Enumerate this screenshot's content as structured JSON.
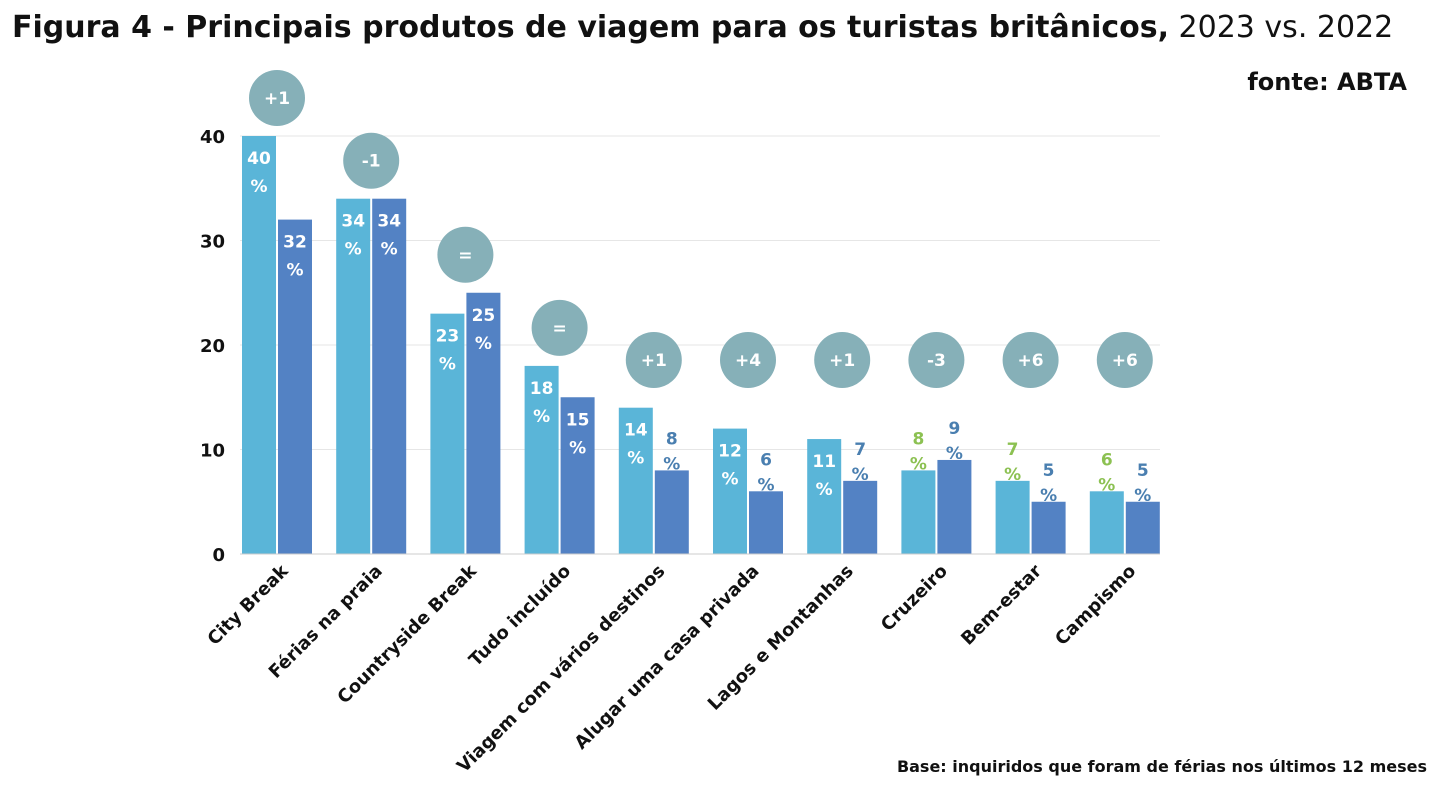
{
  "title": {
    "bold": "Figura 4 - Principais produtos de viagem para os turistas britânicos,",
    "light": "2023 vs. 2022"
  },
  "source_label": "fonte: ABTA",
  "base_note": "Base: inquiridos que foram de férias nos últimos 12 meses",
  "colors": {
    "bar_2023": "#5ab5d8",
    "bar_2022": "#5382c4",
    "bubble": "#86b0b8",
    "label_inside": "#ffffff",
    "label_2022_outside": "#4a7fb0",
    "label_2023_outside": "#8cc152",
    "grid": "#e6e6e6",
    "axis_text": "#111111"
  },
  "chart_data": {
    "type": "bar",
    "categories": [
      "City Break",
      "Férias na praia",
      "Countryside Break",
      "Tudo incluído",
      "Viagem com vários destinos",
      "Alugar uma casa privada",
      "Lagos e Montanhas",
      "Cruzeiro",
      "Bem-estar",
      "Campismo"
    ],
    "series": [
      {
        "values": [
          40,
          34,
          23,
          18,
          14,
          12,
          11,
          8,
          7,
          6
        ]
      },
      {
        "values": [
          32,
          34,
          25,
          15,
          8,
          6,
          7,
          9,
          5,
          5
        ]
      }
    ],
    "data_labels": [
      [
        "40",
        "34",
        "23",
        "18",
        "14",
        "12",
        "11",
        "8",
        "7",
        "6"
      ],
      [
        "32",
        "34",
        "25",
        "15",
        "8",
        "6",
        "7",
        "9",
        "5",
        "5"
      ]
    ],
    "percent_sign": "%",
    "change_labels": [
      "+1",
      "-1",
      "=",
      "=",
      "+1",
      "+4",
      "+1",
      "-3",
      "+6",
      "+6"
    ],
    "y_ticks": [
      0,
      10,
      20,
      30,
      40
    ],
    "ylim": [
      0,
      40
    ],
    "grid": true,
    "legend": "none"
  }
}
